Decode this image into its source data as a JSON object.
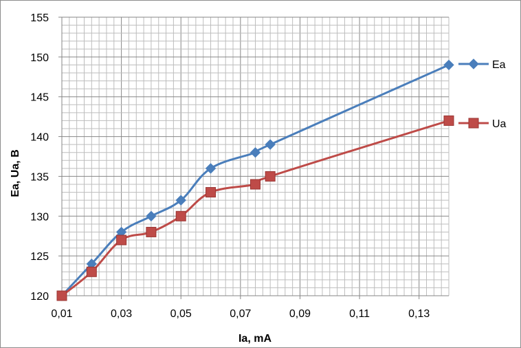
{
  "chart_data": {
    "type": "line",
    "xlabel": "Ia, mA",
    "ylabel": "Ea, Ua, B",
    "xlim": [
      0.01,
      0.14
    ],
    "ylim": [
      120,
      155
    ],
    "x_ticks": [
      "0,01",
      "0,03",
      "0,05",
      "0,07",
      "0,09",
      "0,11",
      "0,13"
    ],
    "y_ticks": [
      "120",
      "125",
      "130",
      "135",
      "140",
      "145",
      "150",
      "155"
    ],
    "grid": true,
    "legend_position": "right",
    "series": [
      {
        "name": "Ea",
        "color": "#4a7ebb",
        "marker": "diamond",
        "x": [
          0.01,
          0.02,
          0.03,
          0.04,
          0.05,
          0.06,
          0.075,
          0.08,
          0.14
        ],
        "y": [
          120,
          124,
          128,
          130,
          132,
          136,
          138,
          139,
          149
        ]
      },
      {
        "name": "Ua",
        "color": "#be4b48",
        "marker": "square",
        "x": [
          0.01,
          0.02,
          0.03,
          0.04,
          0.05,
          0.06,
          0.075,
          0.08,
          0.14
        ],
        "y": [
          120,
          123,
          127,
          128,
          130,
          133,
          134,
          135,
          142
        ]
      }
    ]
  }
}
